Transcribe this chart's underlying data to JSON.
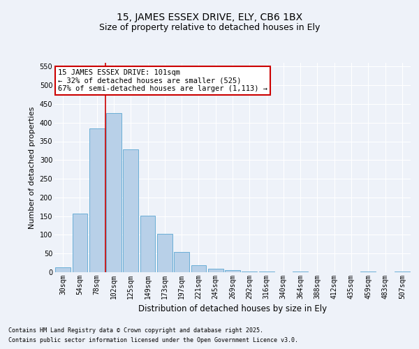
{
  "title": "15, JAMES ESSEX DRIVE, ELY, CB6 1BX",
  "subtitle": "Size of property relative to detached houses in Ely",
  "xlabel": "Distribution of detached houses by size in Ely",
  "ylabel": "Number of detached properties",
  "categories": [
    "30sqm",
    "54sqm",
    "78sqm",
    "102sqm",
    "125sqm",
    "149sqm",
    "173sqm",
    "197sqm",
    "221sqm",
    "245sqm",
    "269sqm",
    "292sqm",
    "316sqm",
    "340sqm",
    "364sqm",
    "388sqm",
    "412sqm",
    "435sqm",
    "459sqm",
    "483sqm",
    "507sqm"
  ],
  "values": [
    14,
    157,
    385,
    425,
    328,
    152,
    102,
    54,
    19,
    10,
    5,
    2,
    1,
    0,
    1,
    0,
    0,
    0,
    1,
    0,
    1
  ],
  "bar_color": "#b8d0e8",
  "bar_edge_color": "#6aaed6",
  "vline_color": "#cc0000",
  "annotation_text": "15 JAMES ESSEX DRIVE: 101sqm\n← 32% of detached houses are smaller (525)\n67% of semi-detached houses are larger (1,113) →",
  "annotation_box_color": "#ffffff",
  "annotation_box_edge_color": "#cc0000",
  "ylim": [
    0,
    560
  ],
  "yticks": [
    0,
    50,
    100,
    150,
    200,
    250,
    300,
    350,
    400,
    450,
    500,
    550
  ],
  "footer1": "Contains HM Land Registry data © Crown copyright and database right 2025.",
  "footer2": "Contains public sector information licensed under the Open Government Licence v3.0.",
  "bg_color": "#eef2f9",
  "grid_color": "#ffffff",
  "title_fontsize": 10,
  "subtitle_fontsize": 9,
  "tick_fontsize": 7,
  "ylabel_fontsize": 8,
  "xlabel_fontsize": 8.5,
  "footer_fontsize": 6,
  "annotation_fontsize": 7.5
}
